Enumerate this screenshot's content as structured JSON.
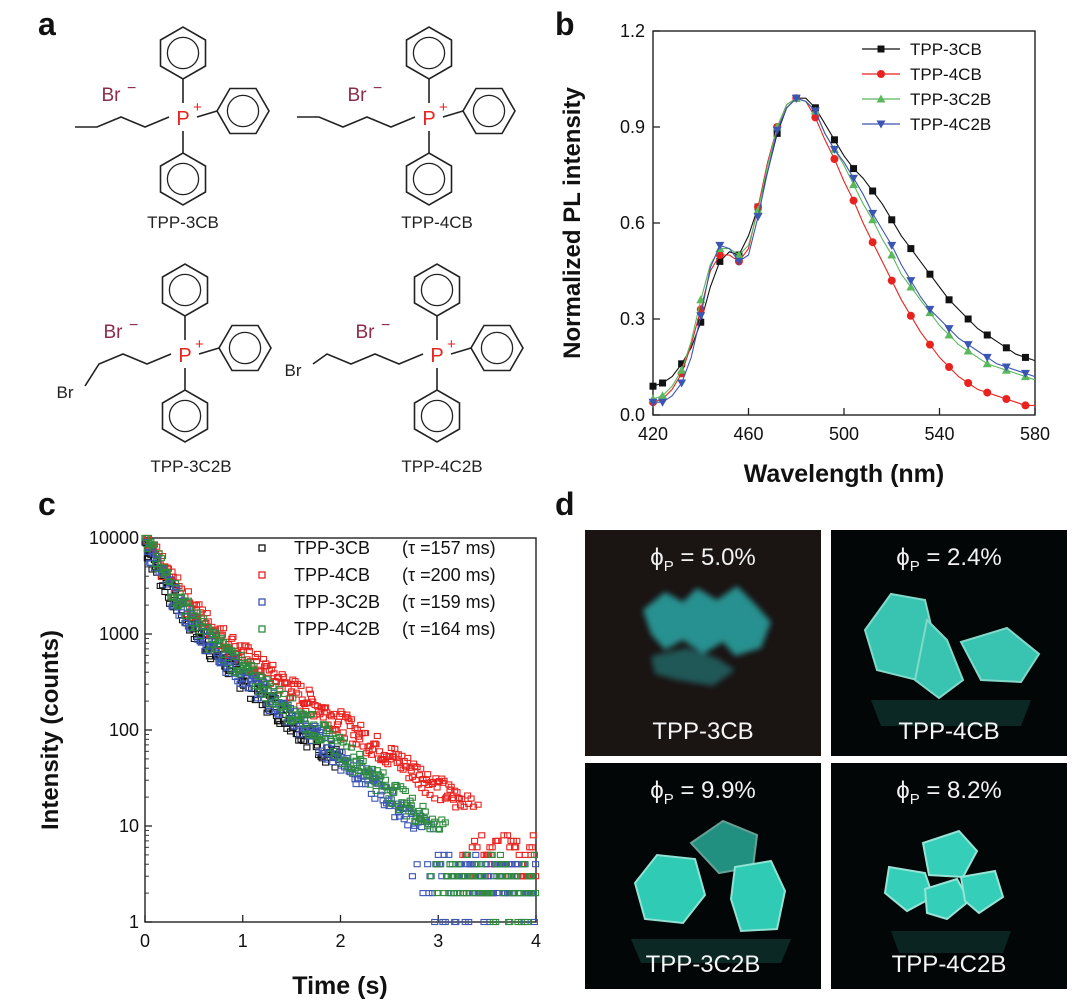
{
  "panels": {
    "a": "a",
    "b": "b",
    "c": "c",
    "d": "d"
  },
  "panel_a": {
    "counter_ion": "Br",
    "counter_charge": "−",
    "phosphorus": "P",
    "phosphorus_charge": "+",
    "bromine": "Br",
    "molecules": [
      "TPP-3CB",
      "TPP-4CB",
      "TPP-3C2B",
      "TPP-4C2B"
    ]
  },
  "chart_data": [
    {
      "type": "line",
      "title": "",
      "xlabel": "Wavelength (nm)",
      "ylabel": "Normalized PL intensity",
      "xlim": [
        420,
        580
      ],
      "ylim": [
        0.0,
        1.2
      ],
      "xticks": [
        "420",
        "460",
        "500",
        "540",
        "580"
      ],
      "yticks": [
        "0.0",
        "0.3",
        "0.6",
        "0.9",
        "1.2"
      ],
      "legend_position": "top-right",
      "series": [
        {
          "name": "TPP-3CB",
          "color": "#111111",
          "marker": "square",
          "x": [
            420,
            424,
            428,
            432,
            436,
            440,
            444,
            448,
            452,
            456,
            460,
            464,
            468,
            472,
            476,
            480,
            484,
            488,
            492,
            496,
            500,
            504,
            508,
            512,
            516,
            520,
            524,
            528,
            532,
            536,
            540,
            544,
            548,
            552,
            556,
            560,
            564,
            568,
            572,
            576,
            580
          ],
          "y": [
            0.09,
            0.1,
            0.12,
            0.16,
            0.21,
            0.29,
            0.4,
            0.48,
            0.51,
            0.5,
            0.56,
            0.65,
            0.76,
            0.88,
            0.96,
            0.99,
            0.99,
            0.96,
            0.91,
            0.86,
            0.81,
            0.77,
            0.74,
            0.7,
            0.66,
            0.61,
            0.56,
            0.52,
            0.48,
            0.44,
            0.4,
            0.36,
            0.33,
            0.3,
            0.27,
            0.25,
            0.23,
            0.21,
            0.19,
            0.18,
            0.17
          ]
        },
        {
          "name": "TPP-4CB",
          "color": "#e8231f",
          "marker": "circle",
          "x": [
            420,
            424,
            428,
            432,
            436,
            440,
            444,
            448,
            452,
            456,
            460,
            464,
            468,
            472,
            476,
            480,
            484,
            488,
            492,
            496,
            500,
            504,
            508,
            512,
            516,
            520,
            524,
            528,
            532,
            536,
            540,
            544,
            548,
            552,
            556,
            560,
            564,
            568,
            572,
            576,
            580
          ],
          "y": [
            0.04,
            0.05,
            0.08,
            0.13,
            0.22,
            0.33,
            0.45,
            0.5,
            0.5,
            0.48,
            0.52,
            0.65,
            0.79,
            0.9,
            0.97,
            0.99,
            0.98,
            0.93,
            0.86,
            0.8,
            0.73,
            0.67,
            0.6,
            0.54,
            0.48,
            0.42,
            0.36,
            0.31,
            0.26,
            0.22,
            0.18,
            0.15,
            0.12,
            0.1,
            0.08,
            0.07,
            0.06,
            0.05,
            0.04,
            0.03,
            0.03
          ]
        },
        {
          "name": "TPP-3C2B",
          "color": "#5cb85c",
          "marker": "triangle-up",
          "x": [
            420,
            424,
            428,
            432,
            436,
            440,
            444,
            448,
            452,
            456,
            460,
            464,
            468,
            472,
            476,
            480,
            484,
            488,
            492,
            496,
            500,
            504,
            508,
            512,
            516,
            520,
            524,
            528,
            532,
            536,
            540,
            544,
            548,
            552,
            556,
            560,
            564,
            568,
            572,
            576,
            580
          ],
          "y": [
            0.05,
            0.06,
            0.09,
            0.14,
            0.23,
            0.36,
            0.47,
            0.52,
            0.52,
            0.5,
            0.53,
            0.64,
            0.78,
            0.9,
            0.97,
            0.99,
            0.98,
            0.95,
            0.88,
            0.83,
            0.78,
            0.72,
            0.66,
            0.61,
            0.55,
            0.5,
            0.44,
            0.4,
            0.36,
            0.32,
            0.28,
            0.25,
            0.22,
            0.2,
            0.18,
            0.16,
            0.15,
            0.14,
            0.13,
            0.12,
            0.11
          ]
        },
        {
          "name": "TPP-4C2B",
          "color": "#3b55b5",
          "marker": "triangle-down",
          "x": [
            420,
            424,
            428,
            432,
            436,
            440,
            444,
            448,
            452,
            456,
            460,
            464,
            468,
            472,
            476,
            480,
            484,
            488,
            492,
            496,
            500,
            504,
            508,
            512,
            516,
            520,
            524,
            528,
            532,
            536,
            540,
            544,
            548,
            552,
            556,
            560,
            564,
            568,
            572,
            576,
            580
          ],
          "y": [
            0.04,
            0.04,
            0.06,
            0.1,
            0.18,
            0.31,
            0.46,
            0.53,
            0.52,
            0.48,
            0.5,
            0.62,
            0.76,
            0.89,
            0.96,
            0.99,
            0.98,
            0.95,
            0.88,
            0.83,
            0.79,
            0.74,
            0.69,
            0.63,
            0.58,
            0.53,
            0.47,
            0.42,
            0.37,
            0.33,
            0.3,
            0.27,
            0.24,
            0.22,
            0.2,
            0.18,
            0.16,
            0.15,
            0.14,
            0.13,
            0.12
          ]
        }
      ]
    },
    {
      "type": "scatter",
      "title": "",
      "xlabel": "Time (s)",
      "ylabel": "Intensity (counts)",
      "xlim": [
        0,
        4
      ],
      "ylim": [
        1,
        10000
      ],
      "yscale": "log",
      "xticks": [
        "0",
        "1",
        "2",
        "3",
        "4"
      ],
      "yticks": [
        "1",
        "10",
        "100",
        "1000",
        "10000"
      ],
      "legend_position": "top-right",
      "series": [
        {
          "name": "TPP-3CB",
          "tau_text": "(τ =157 ms)",
          "color": "#111111",
          "decay_ms": 157,
          "initial": 9000,
          "noise_floor": 3,
          "tail": 2.0
        },
        {
          "name": "TPP-4CB",
          "tau_text": "(τ =200 ms)",
          "color": "#e8231f",
          "decay_ms": 200,
          "initial": 10000,
          "noise_floor": 5,
          "tail": 4.0
        },
        {
          "name": "TPP-3C2B",
          "tau_text": "(τ =159 ms)",
          "color": "#3b55b5",
          "decay_ms": 159,
          "initial": 9500,
          "noise_floor": 3,
          "tail": 4.0
        },
        {
          "name": "TPP-4C2B",
          "tau_text": "(τ =164 ms)",
          "color": "#2e8b3e",
          "decay_ms": 164,
          "initial": 10500,
          "noise_floor": 3,
          "tail": 4.0
        }
      ]
    }
  ],
  "panel_d": {
    "phi_symbol": "ϕ",
    "phi_sub": "P",
    "photos": [
      {
        "label": "TPP-3CB",
        "phi": "= 5.0%"
      },
      {
        "label": "TPP-4CB",
        "phi": "= 2.4%"
      },
      {
        "label": "TPP-3C2B",
        "phi": "= 9.9%"
      },
      {
        "label": "TPP-4C2B",
        "phi": "= 8.2%"
      }
    ],
    "glow_color": "#3fe3c8"
  }
}
